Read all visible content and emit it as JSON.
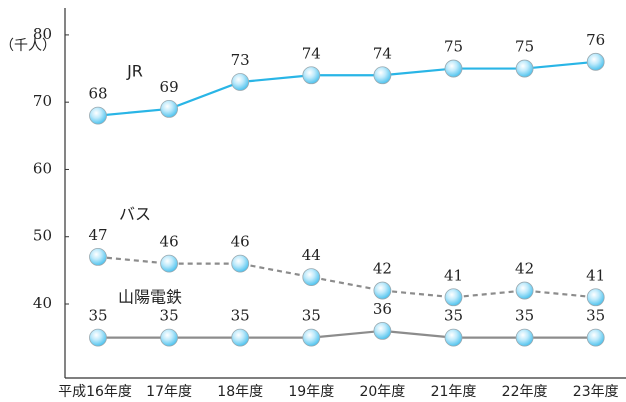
{
  "chart_data": {
    "type": "line",
    "y_label": "（千人）",
    "categories": [
      "平成16年度",
      "17年度",
      "18年度",
      "19年度",
      "20年度",
      "21年度",
      "22年度",
      "23年度"
    ],
    "series": [
      {
        "name": "JR",
        "color": "#29b5e6",
        "dash": false,
        "values": [
          68,
          69,
          73,
          74,
          74,
          75,
          75,
          76
        ]
      },
      {
        "name": "バス",
        "color": "#8c8c8c",
        "dash": true,
        "values": [
          47,
          46,
          46,
          44,
          42,
          41,
          42,
          41
        ]
      },
      {
        "name": "山陽電鉄",
        "color": "#8c8c8c",
        "dash": false,
        "values": [
          35,
          35,
          35,
          35,
          36,
          35,
          35,
          35
        ]
      }
    ],
    "ylim": [
      29,
      84
    ],
    "yticks": [
      40,
      50,
      60,
      70,
      80
    ]
  }
}
